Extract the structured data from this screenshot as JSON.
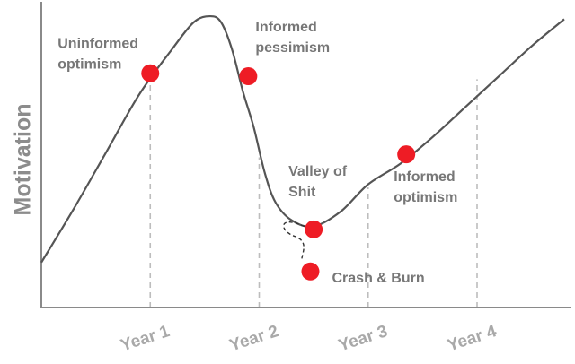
{
  "chart_data": {
    "type": "line",
    "ylabel": "Motivation",
    "xlabel": "",
    "title": "",
    "categories": [
      "Year 1",
      "Year 2",
      "Year 3",
      "Year 4"
    ],
    "xlim": [
      0,
      4.8
    ],
    "ylim": [
      0,
      100
    ],
    "grid": false,
    "series": [
      {
        "x": [
          0,
          0.3,
          0.6,
          0.9,
          1.2,
          1.4,
          1.55,
          1.65,
          1.75,
          1.85,
          1.95,
          2.05,
          2.15,
          2.3,
          2.5,
          2.75,
          3.0,
          3.3,
          3.6,
          3.9,
          4.2,
          4.5,
          4.8
        ],
        "y": [
          15,
          33,
          52,
          71,
          86,
          95,
          97,
          95,
          86,
          72,
          60,
          45,
          35,
          29,
          27,
          32,
          41,
          48,
          57,
          67,
          77,
          87,
          96
        ]
      }
    ],
    "points": [
      {
        "label": "Uninformed\noptimism",
        "x": 1.0,
        "y": 78
      },
      {
        "label": "Informed\npessimism",
        "x": 1.9,
        "y": 77
      },
      {
        "label": "Valley of\nShit",
        "x": 2.5,
        "y": 26
      },
      {
        "label": "Crash & Burn",
        "x": 2.47,
        "y": 12
      },
      {
        "label": "Informed\noptimism",
        "x": 3.35,
        "y": 51
      }
    ],
    "line_color": "#555555",
    "point_color": "#ee1c25",
    "label_color": "#777777",
    "axis_color": "#8a8a8a",
    "tick_color": "#a9a9a9"
  }
}
